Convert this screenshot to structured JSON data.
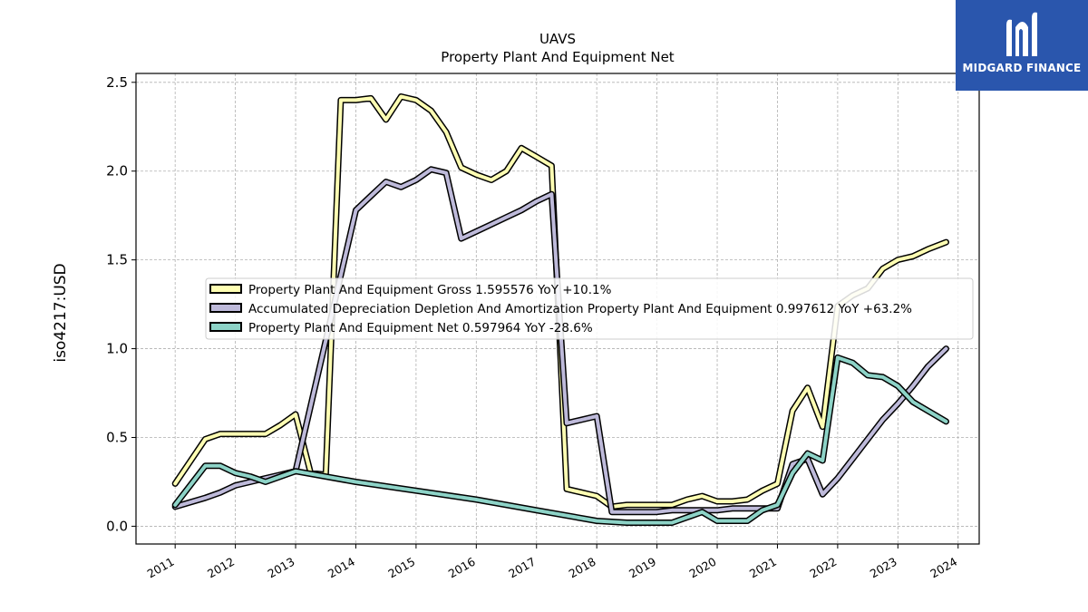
{
  "brand": {
    "name": "MIDGARD FINANCE"
  },
  "chart_data": {
    "type": "line",
    "title": "UAVS",
    "subtitle": "Property Plant And Equipment Net",
    "ylabel": "iso4217:USD",
    "xlabel": "",
    "ylim": [
      -0.1,
      2.55
    ],
    "xlim": [
      2010.35,
      2024.35
    ],
    "grid": true,
    "legend_position": "center-left",
    "x_ticks": [
      2011,
      2012,
      2013,
      2014,
      2015,
      2016,
      2017,
      2018,
      2019,
      2020,
      2021,
      2022,
      2023,
      2024
    ],
    "y_ticks": [
      0.0,
      0.5,
      1.0,
      1.5,
      2.0,
      2.5
    ],
    "x_tick_labels": [
      "2011",
      "2012",
      "2013",
      "2014",
      "2015",
      "2016",
      "2017",
      "2018",
      "2019",
      "2020",
      "2021",
      "2022",
      "2023",
      "2024"
    ],
    "y_tick_labels": [
      "0.0",
      "0.5",
      "1.0",
      "1.5",
      "2.0",
      "2.5"
    ],
    "series": [
      {
        "name": "Property Plant And Equipment Gross",
        "legend_label": "Property Plant And Equipment Gross  1.595576 YoY +10.1%",
        "color": "#ffffb3",
        "points": [
          [
            2011.0,
            0.24
          ],
          [
            2011.5,
            0.49
          ],
          [
            2011.75,
            0.52
          ],
          [
            2012.0,
            0.52
          ],
          [
            2012.5,
            0.52
          ],
          [
            2012.75,
            0.57
          ],
          [
            2013.0,
            0.63
          ],
          [
            2013.25,
            0.3
          ],
          [
            2013.5,
            0.29
          ],
          [
            2013.75,
            2.4
          ],
          [
            2014.0,
            2.4
          ],
          [
            2014.25,
            2.41
          ],
          [
            2014.5,
            2.29
          ],
          [
            2014.75,
            2.42
          ],
          [
            2015.0,
            2.4
          ],
          [
            2015.25,
            2.34
          ],
          [
            2015.5,
            2.22
          ],
          [
            2015.75,
            2.02
          ],
          [
            2016.0,
            1.98
          ],
          [
            2016.25,
            1.95
          ],
          [
            2016.5,
            2.0
          ],
          [
            2016.75,
            2.13
          ],
          [
            2017.0,
            2.08
          ],
          [
            2017.25,
            2.03
          ],
          [
            2017.5,
            0.21
          ],
          [
            2017.75,
            0.19
          ],
          [
            2018.0,
            0.17
          ],
          [
            2018.25,
            0.11
          ],
          [
            2018.5,
            0.12
          ],
          [
            2018.75,
            0.12
          ],
          [
            2019.0,
            0.12
          ],
          [
            2019.25,
            0.12
          ],
          [
            2019.5,
            0.15
          ],
          [
            2019.75,
            0.17
          ],
          [
            2020.0,
            0.14
          ],
          [
            2020.25,
            0.14
          ],
          [
            2020.5,
            0.15
          ],
          [
            2020.75,
            0.2
          ],
          [
            2021.0,
            0.24
          ],
          [
            2021.25,
            0.65
          ],
          [
            2021.5,
            0.78
          ],
          [
            2021.75,
            0.56
          ],
          [
            2022.0,
            1.24
          ],
          [
            2022.25,
            1.3
          ],
          [
            2022.5,
            1.34
          ],
          [
            2022.75,
            1.45
          ],
          [
            2023.0,
            1.5
          ],
          [
            2023.25,
            1.52
          ],
          [
            2023.5,
            1.56
          ],
          [
            2023.8,
            1.6
          ]
        ]
      },
      {
        "name": "Accumulated Depreciation Depletion And Amortization Property Plant And Equipment",
        "legend_label": "Accumulated Depreciation Depletion And Amortization Property Plant And Equipment  0.997612 YoY +63.2%",
        "color": "#bebada",
        "points": [
          [
            2011.0,
            0.11
          ],
          [
            2011.5,
            0.16
          ],
          [
            2011.75,
            0.19
          ],
          [
            2012.0,
            0.23
          ],
          [
            2012.5,
            0.27
          ],
          [
            2012.75,
            0.29
          ],
          [
            2013.0,
            0.31
          ],
          [
            2014.0,
            1.78
          ],
          [
            2014.25,
            1.86
          ],
          [
            2014.5,
            1.94
          ],
          [
            2014.75,
            1.91
          ],
          [
            2015.0,
            1.95
          ],
          [
            2015.25,
            2.01
          ],
          [
            2015.5,
            1.99
          ],
          [
            2015.75,
            1.62
          ],
          [
            2016.0,
            1.66
          ],
          [
            2016.25,
            1.7
          ],
          [
            2016.5,
            1.74
          ],
          [
            2016.75,
            1.78
          ],
          [
            2017.0,
            1.83
          ],
          [
            2017.25,
            1.87
          ],
          [
            2017.5,
            0.58
          ],
          [
            2017.75,
            0.6
          ],
          [
            2018.0,
            0.62
          ],
          [
            2018.25,
            0.08
          ],
          [
            2018.5,
            0.08
          ],
          [
            2018.75,
            0.08
          ],
          [
            2019.0,
            0.08
          ],
          [
            2019.25,
            0.09
          ],
          [
            2019.5,
            0.09
          ],
          [
            2019.75,
            0.09
          ],
          [
            2020.0,
            0.09
          ],
          [
            2020.25,
            0.1
          ],
          [
            2020.5,
            0.1
          ],
          [
            2020.75,
            0.1
          ],
          [
            2021.0,
            0.1
          ],
          [
            2021.25,
            0.35
          ],
          [
            2021.5,
            0.38
          ],
          [
            2021.75,
            0.18
          ],
          [
            2022.0,
            0.27
          ],
          [
            2022.25,
            0.38
          ],
          [
            2022.5,
            0.49
          ],
          [
            2022.75,
            0.6
          ],
          [
            2023.0,
            0.69
          ],
          [
            2023.25,
            0.79
          ],
          [
            2023.5,
            0.9
          ],
          [
            2023.8,
            1.0
          ]
        ]
      },
      {
        "name": "Property Plant And Equipment Net",
        "legend_label": "Property Plant And Equipment Net  0.597964 YoY -28.6%",
        "color": "#8dd3c7",
        "points": [
          [
            2011.0,
            0.12
          ],
          [
            2011.5,
            0.34
          ],
          [
            2011.75,
            0.34
          ],
          [
            2012.0,
            0.3
          ],
          [
            2012.25,
            0.28
          ],
          [
            2012.5,
            0.25
          ],
          [
            2012.75,
            0.28
          ],
          [
            2013.0,
            0.31
          ],
          [
            2014.0,
            0.25
          ],
          [
            2015.0,
            0.2
          ],
          [
            2016.0,
            0.15
          ],
          [
            2017.0,
            0.09
          ],
          [
            2018.0,
            0.03
          ],
          [
            2018.5,
            0.02
          ],
          [
            2018.75,
            0.02
          ],
          [
            2019.0,
            0.02
          ],
          [
            2019.25,
            0.02
          ],
          [
            2019.5,
            0.05
          ],
          [
            2019.75,
            0.08
          ],
          [
            2020.0,
            0.03
          ],
          [
            2020.25,
            0.03
          ],
          [
            2020.5,
            0.03
          ],
          [
            2020.75,
            0.09
          ],
          [
            2021.0,
            0.12
          ],
          [
            2021.25,
            0.3
          ],
          [
            2021.5,
            0.41
          ],
          [
            2021.75,
            0.37
          ],
          [
            2022.0,
            0.95
          ],
          [
            2022.25,
            0.92
          ],
          [
            2022.5,
            0.85
          ],
          [
            2022.75,
            0.84
          ],
          [
            2023.0,
            0.79
          ],
          [
            2023.25,
            0.7
          ],
          [
            2023.5,
            0.65
          ],
          [
            2023.8,
            0.59
          ]
        ]
      }
    ]
  }
}
